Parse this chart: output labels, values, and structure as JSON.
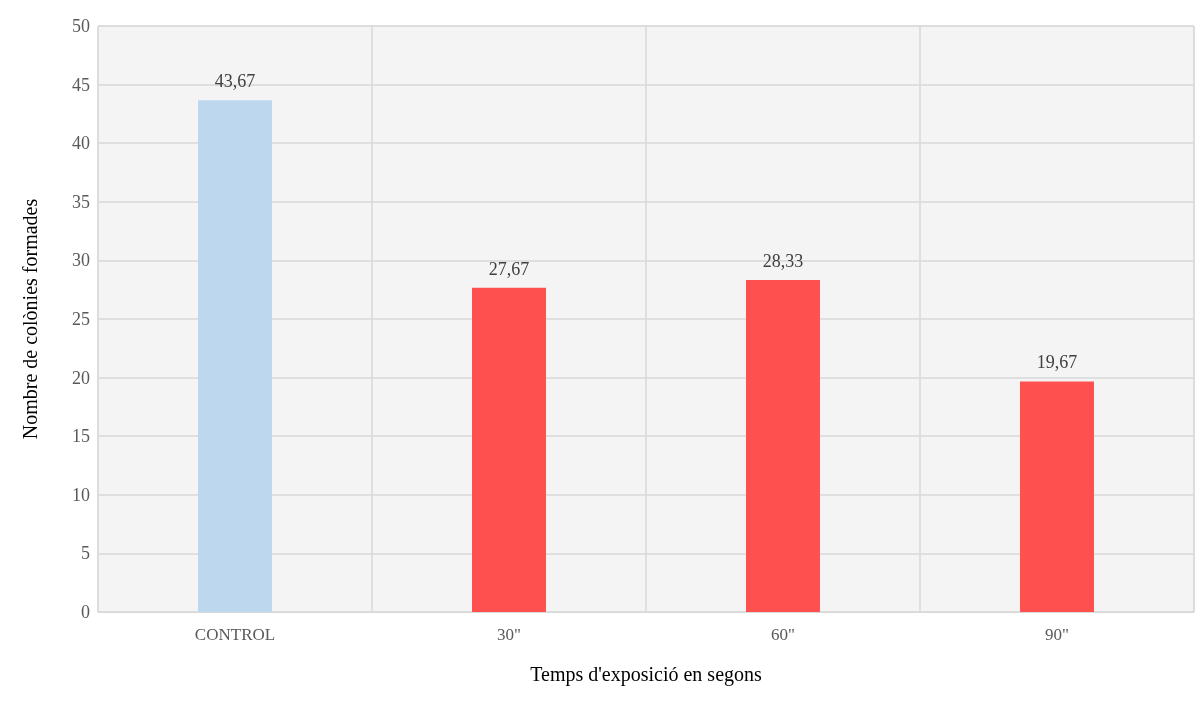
{
  "chart_data": {
    "type": "bar",
    "xlabel": "Temps d'exposició en segons",
    "ylabel": "Nombre de colònies formades",
    "categories": [
      "CONTROL",
      "30\"",
      "60\"",
      "90\""
    ],
    "values": [
      43.67,
      27.67,
      28.33,
      19.67
    ],
    "colors": [
      "#bdd7ee",
      "#ff5050",
      "#ff5050",
      "#ff5050"
    ],
    "value_labels": [
      "43,67",
      "27,67",
      "28,33",
      "19,67"
    ],
    "ylim": [
      0,
      50
    ],
    "yticks": [
      0,
      5,
      10,
      15,
      20,
      25,
      30,
      35,
      40,
      45,
      50
    ],
    "grid": true
  }
}
